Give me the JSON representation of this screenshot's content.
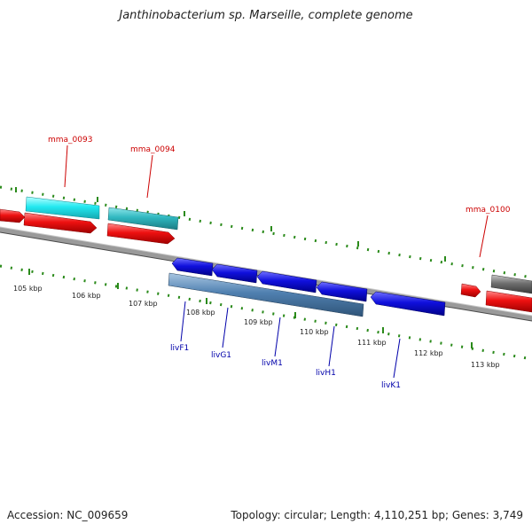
{
  "title": "Janthinobacterium sp. Marseille, complete genome",
  "accession": "Accession: NC_009659",
  "topology": "Topology: circular; Length: 4,110,251 bp; Genes: 3,749",
  "scale_labels": [
    "105 kbp",
    "106 kbp",
    "107 kbp",
    "108 kbp",
    "109 kbp",
    "110 kbp",
    "111 kbp",
    "112 kbp",
    "113 kbp"
  ],
  "gene_labels": {
    "mma_0093": "mma_0093",
    "mma_0094": "mma_0094",
    "mma_0100": "mma_0100",
    "livF1": "livF1",
    "livG1": "livG1",
    "livM1": "livM1",
    "livH1": "livH1",
    "livK1": "livK1"
  },
  "colors": {
    "cyan": "#22e8f0",
    "teal": "#30b8c0",
    "red": "#ee1111",
    "blue": "#1010dd",
    "steel": "#5080b0",
    "gray": "#707070",
    "tick": "#2a8a1a",
    "label_red": "#cc0000",
    "label_blue": "#0000aa"
  }
}
